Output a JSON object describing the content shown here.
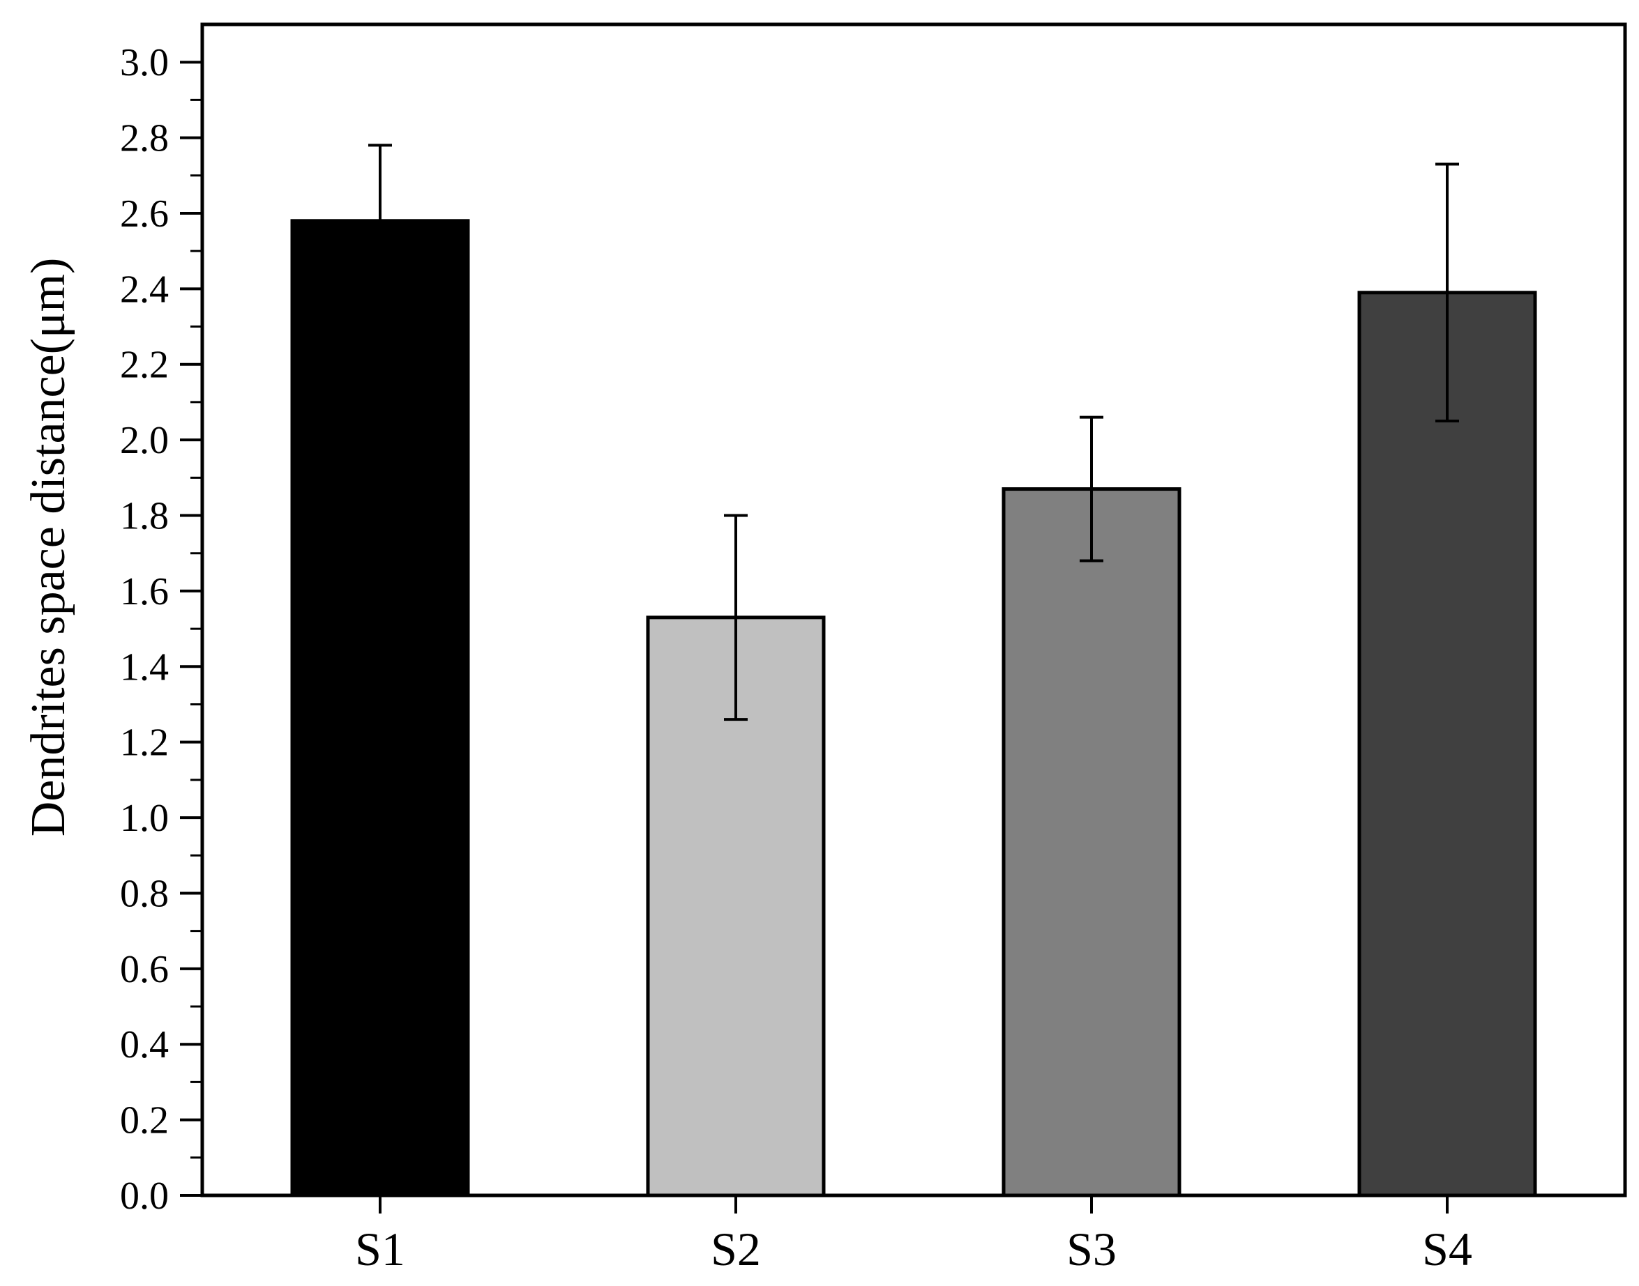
{
  "chart_data": {
    "type": "bar",
    "title": "",
    "xlabel": "",
    "ylabel": "Dendrites space distance(μm)",
    "categories": [
      "S1",
      "S2",
      "S3",
      "S4"
    ],
    "values": [
      2.58,
      1.53,
      1.87,
      2.39
    ],
    "error_upper": [
      2.78,
      1.8,
      2.06,
      2.73
    ],
    "error_lower": [
      2.58,
      1.26,
      1.68,
      2.05
    ],
    "bar_colors": [
      "#000000",
      "#c0c0c0",
      "#808080",
      "#404040"
    ],
    "ylim": [
      0.0,
      3.1
    ],
    "yticks": [
      "0.0",
      "0.2",
      "0.4",
      "0.6",
      "0.8",
      "1.0",
      "1.2",
      "1.4",
      "1.6",
      "1.8",
      "2.0",
      "2.2",
      "2.4",
      "2.6",
      "2.8",
      "3.0"
    ],
    "grid": false,
    "legend": "none"
  }
}
